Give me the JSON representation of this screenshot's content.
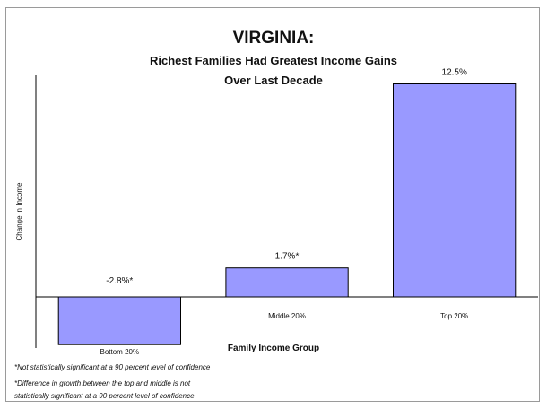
{
  "chart_data": {
    "type": "bar",
    "title": "VIRGINIA:",
    "subtitle_lines": [
      "Richest Families Had Greatest Income Gains",
      "Over Last Decade"
    ],
    "xlabel": "Family Income Group",
    "ylabel": "Change in Income",
    "categories": [
      "Bottom 20%",
      "Middle 20%",
      "Top 20%"
    ],
    "values": [
      -2.8,
      1.7,
      12.5
    ],
    "data_labels": [
      "-2.8%*",
      "1.7%*",
      "12.5%"
    ],
    "ylim": [
      -3,
      13
    ],
    "grid": false,
    "bar_color": "#9999ff",
    "bar_edge_color": "#000000"
  },
  "footnotes": [
    "*Not statistically significant at a 90 percent level of confidence",
    "*Difference in growth between the top and middle is not",
    "statistically significant at a 90 percent level of confidence"
  ]
}
